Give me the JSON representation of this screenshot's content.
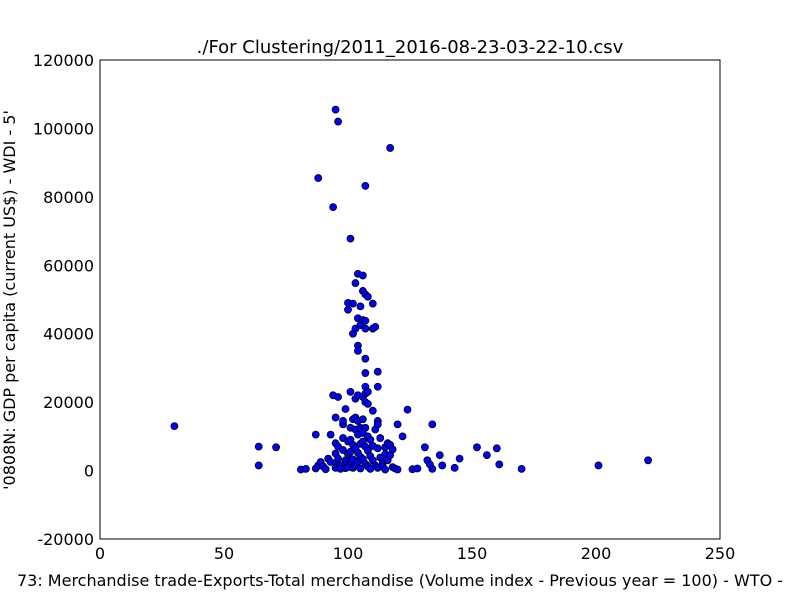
{
  "chart_data": {
    "type": "scatter",
    "title": "./For Clustering/2011_2016-08-23-03-22-10.csv",
    "xlabel": "73: Merchandise trade-Exports-Total merchandise (Volume index - Previous year = 100) - WTO -",
    "ylabel": "'0808N: GDP per capita  (current US$) - WDI - 5'",
    "xlim": [
      0,
      250
    ],
    "ylim": [
      -20000,
      120000
    ],
    "xticks": [
      0,
      50,
      100,
      150,
      200,
      250
    ],
    "yticks": [
      -20000,
      0,
      20000,
      40000,
      60000,
      80000,
      100000,
      120000
    ],
    "marker_color": "#0000ff",
    "marker_edge": "#000000",
    "grid": false,
    "points": [
      [
        30,
        13000
      ],
      [
        64,
        7000
      ],
      [
        64,
        1500
      ],
      [
        71,
        6800
      ],
      [
        81,
        300
      ],
      [
        83,
        500
      ],
      [
        87,
        600
      ],
      [
        87,
        10500
      ],
      [
        88,
        1500
      ],
      [
        88,
        85500
      ],
      [
        89,
        2500
      ],
      [
        90,
        1200
      ],
      [
        91,
        400
      ],
      [
        92,
        3500
      ],
      [
        93,
        2500
      ],
      [
        93,
        10500
      ],
      [
        94,
        77000
      ],
      [
        94,
        22000
      ],
      [
        95,
        15500
      ],
      [
        95,
        8000
      ],
      [
        95,
        5000
      ],
      [
        95,
        2000
      ],
      [
        95,
        800
      ],
      [
        95,
        105500
      ],
      [
        96,
        21500
      ],
      [
        96,
        102000
      ],
      [
        96,
        7000
      ],
      [
        96,
        3500
      ],
      [
        97,
        1500
      ],
      [
        97,
        500
      ],
      [
        98,
        13500
      ],
      [
        98,
        14500
      ],
      [
        98,
        9500
      ],
      [
        98,
        6000
      ],
      [
        99,
        3000
      ],
      [
        99,
        1800
      ],
      [
        99,
        700
      ],
      [
        99,
        18000
      ],
      [
        100,
        47000
      ],
      [
        100,
        49000
      ],
      [
        100,
        8500
      ],
      [
        100,
        4800
      ],
      [
        100,
        1000
      ],
      [
        101,
        67800
      ],
      [
        101,
        23000
      ],
      [
        101,
        12500
      ],
      [
        101,
        9000
      ],
      [
        101,
        5500
      ],
      [
        101,
        2800
      ],
      [
        102,
        48800
      ],
      [
        102,
        40000
      ],
      [
        102,
        15000
      ],
      [
        102,
        7500
      ],
      [
        102,
        3300
      ],
      [
        102,
        800
      ],
      [
        103,
        54800
      ],
      [
        103,
        41500
      ],
      [
        103,
        21000
      ],
      [
        103,
        15500
      ],
      [
        103,
        12000
      ],
      [
        103,
        6500
      ],
      [
        103,
        1500
      ],
      [
        104,
        57500
      ],
      [
        104,
        44500
      ],
      [
        104,
        36500
      ],
      [
        104,
        35000
      ],
      [
        104,
        22000
      ],
      [
        104,
        14500
      ],
      [
        104,
        10500
      ],
      [
        104,
        5200
      ],
      [
        104,
        2600
      ],
      [
        105,
        42500
      ],
      [
        105,
        48000
      ],
      [
        105,
        12500
      ],
      [
        105,
        7800
      ],
      [
        105,
        4000
      ],
      [
        105,
        600
      ],
      [
        106,
        57000
      ],
      [
        106,
        52500
      ],
      [
        106,
        44000
      ],
      [
        106,
        21500
      ],
      [
        106,
        15000
      ],
      [
        106,
        11000
      ],
      [
        106,
        8500
      ],
      [
        106,
        3400
      ],
      [
        107,
        83200
      ],
      [
        107,
        51500
      ],
      [
        107,
        43800
      ],
      [
        107,
        41500
      ],
      [
        107,
        32700
      ],
      [
        107,
        28500
      ],
      [
        107,
        24500
      ],
      [
        107,
        22500
      ],
      [
        107,
        20000
      ],
      [
        107,
        12500
      ],
      [
        107,
        7000
      ],
      [
        107,
        2000
      ],
      [
        108,
        50800
      ],
      [
        108,
        23000
      ],
      [
        108,
        19500
      ],
      [
        108,
        10000
      ],
      [
        108,
        5800
      ],
      [
        108,
        1200
      ],
      [
        109,
        9000
      ],
      [
        109,
        4200
      ],
      [
        109,
        500
      ],
      [
        110,
        41500
      ],
      [
        110,
        48800
      ],
      [
        110,
        17500
      ],
      [
        110,
        7200
      ],
      [
        110,
        3000
      ],
      [
        111,
        42000
      ],
      [
        111,
        12000
      ],
      [
        111,
        1500
      ],
      [
        112,
        28900
      ],
      [
        112,
        24500
      ],
      [
        112,
        14500
      ],
      [
        112,
        13500
      ],
      [
        112,
        6500
      ],
      [
        112,
        800
      ],
      [
        113,
        9500
      ],
      [
        113,
        3800
      ],
      [
        114,
        2200
      ],
      [
        114,
        1200
      ],
      [
        115,
        6800
      ],
      [
        115,
        4800
      ],
      [
        115,
        300
      ],
      [
        116,
        8000
      ],
      [
        116,
        3000
      ],
      [
        117,
        94300
      ],
      [
        117,
        7500
      ],
      [
        117,
        4500
      ],
      [
        118,
        6200
      ],
      [
        118,
        1000
      ],
      [
        119,
        600
      ],
      [
        120,
        13500
      ],
      [
        120,
        300
      ],
      [
        122,
        10000
      ],
      [
        124,
        17800
      ],
      [
        126,
        400
      ],
      [
        128,
        600
      ],
      [
        131,
        6800
      ],
      [
        132,
        3000
      ],
      [
        133,
        1800
      ],
      [
        134,
        13500
      ],
      [
        134,
        500
      ],
      [
        137,
        4500
      ],
      [
        138,
        1500
      ],
      [
        143,
        800
      ],
      [
        145,
        3500
      ],
      [
        152,
        6800
      ],
      [
        156,
        4500
      ],
      [
        160,
        6500
      ],
      [
        161,
        1800
      ],
      [
        170,
        500
      ],
      [
        201,
        1500
      ],
      [
        221,
        3000
      ]
    ]
  }
}
